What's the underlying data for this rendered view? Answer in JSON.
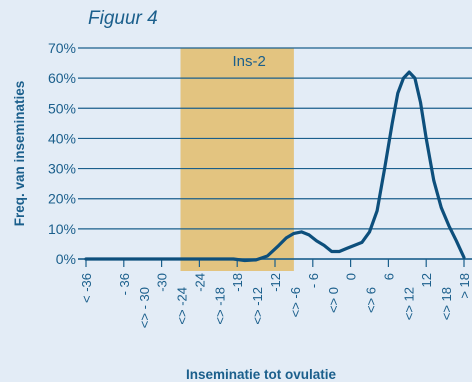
{
  "figure_label": "Figuur 4",
  "colors": {
    "background": "#e3ecf6",
    "highlight": "#e3c480",
    "grid": "#1b5f8c",
    "line": "#0d4f7c",
    "text": "#1b5f8c"
  },
  "chart_data": {
    "type": "line",
    "ylabel": "Freq. van inseminaties",
    "xlabel": "Inseminatie tot ovulatie",
    "ylim": [
      0,
      70
    ],
    "yticks": [
      0,
      10,
      20,
      30,
      40,
      50,
      60,
      70
    ],
    "ytick_suffix": "%",
    "grid": "horizontal",
    "categories": [
      [
        "< -36"
      ],
      [
        "- 36",
        "<> - 30"
      ],
      [
        "-30",
        "<> -24"
      ],
      [
        "-24",
        "<> -18"
      ],
      [
        "-18",
        "<> -12"
      ],
      [
        "-12",
        "<> -6"
      ],
      [
        "- 6",
        "<> 0"
      ],
      [
        "0",
        "<> 6"
      ],
      [
        "6",
        "<> 12"
      ],
      [
        "12",
        "<> 18"
      ],
      [
        "> 18"
      ]
    ],
    "highlight": {
      "label": "Ins-2",
      "from_category": 3,
      "to_category": 6
    },
    "series": [
      {
        "x": [
          0,
          0.5,
          1,
          1.5,
          2,
          2.5,
          3,
          3.3,
          3.6,
          3.9,
          4.2,
          4.5,
          4.8,
          5.1,
          5.3,
          5.5,
          5.7,
          5.9,
          6.1,
          6.3,
          6.5,
          6.7,
          6.9,
          7.1,
          7.3,
          7.5,
          7.7,
          7.9,
          8.1,
          8.25,
          8.4,
          8.55,
          8.7,
          8.85,
          9.0,
          9.2,
          9.4,
          9.6,
          9.8,
          10.0
        ],
        "values": [
          0,
          0,
          0,
          0,
          0,
          0,
          0,
          0,
          0,
          0,
          -0.5,
          -0.3,
          1,
          4.5,
          7,
          8.5,
          9,
          8,
          6,
          4.5,
          2.5,
          2.5,
          3.5,
          4.5,
          5.5,
          9,
          16,
          30,
          45,
          55,
          60,
          62,
          60,
          52,
          40,
          26,
          17,
          11,
          6,
          0.5
        ]
      }
    ]
  }
}
